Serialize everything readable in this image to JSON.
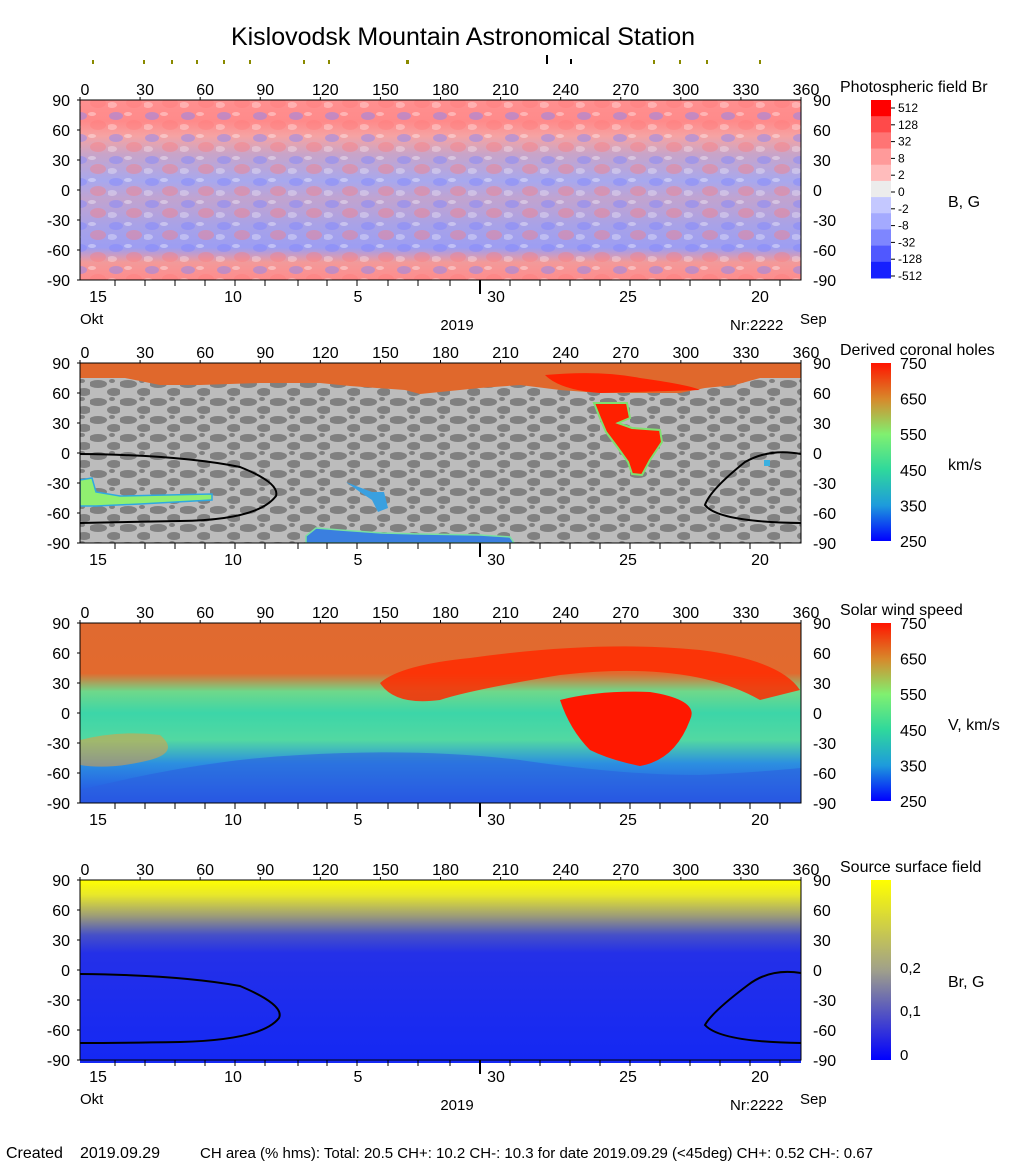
{
  "title": "Kislovodsk Mountain Astronomical Station",
  "footer": {
    "created_label": "Created",
    "created_date": "2019.09.29",
    "ch_area_text": "CH area (% hms): Total: 20.5 CH+: 10.2   CH-: 10.3 for date 2019.09.29 (<45deg) CH+: 0.52    CH-: 0.67"
  },
  "chart_data": [
    {
      "type": "heatmap",
      "title": "Photospheric field Br",
      "colorbar_label": "B, G",
      "colorbar_ticks": [
        "512",
        "128",
        "32",
        "8",
        "2",
        "0",
        "-2",
        "-8",
        "-32",
        "-128",
        "-512"
      ],
      "colorbar_colors": [
        "#ff0000",
        "#ff4a4a",
        "#ff7474",
        "#ff9a9a",
        "#ffbcbc",
        "#ececec",
        "#c4c8ff",
        "#a4aaff",
        "#7e86ff",
        "#5058ff",
        "#1620ff"
      ],
      "x_ticks": [
        "0",
        "30",
        "60",
        "90",
        "120",
        "150",
        "180",
        "210",
        "240",
        "270",
        "300",
        "330",
        "360"
      ],
      "y_ticks": [
        "90",
        "60",
        "30",
        "0",
        "-30",
        "-60",
        "-90"
      ],
      "xlim": [
        0,
        360
      ],
      "ylim": [
        -90,
        90
      ],
      "date_ticks": [
        "15",
        "10",
        "5",
        "30",
        "25",
        "20"
      ],
      "month_left": "Okt",
      "year": "2019",
      "rotation": "Nr:2222",
      "month_right": "Sep"
    },
    {
      "type": "heatmap",
      "title": "Derived coronal holes",
      "colorbar_label": "km/s",
      "colorbar_ticks": [
        "750",
        "650",
        "550",
        "450",
        "350",
        "250"
      ],
      "x_ticks": [
        "0",
        "30",
        "60",
        "90",
        "120",
        "150",
        "180",
        "210",
        "240",
        "270",
        "300",
        "330",
        "360"
      ],
      "y_ticks": [
        "90",
        "60",
        "30",
        "0",
        "-30",
        "-60",
        "-90"
      ],
      "xlim": [
        0,
        360
      ],
      "ylim": [
        -90,
        90
      ],
      "date_ticks": [
        "15",
        "10",
        "5",
        "30",
        "25",
        "20"
      ]
    },
    {
      "type": "heatmap",
      "title": "Solar wind speed",
      "colorbar_label": "V, km/s",
      "colorbar_ticks": [
        "750",
        "650",
        "550",
        "450",
        "350",
        "250"
      ],
      "x_ticks": [
        "0",
        "30",
        "60",
        "90",
        "120",
        "150",
        "180",
        "210",
        "240",
        "270",
        "300",
        "330",
        "360"
      ],
      "y_ticks": [
        "90",
        "60",
        "30",
        "0",
        "-30",
        "-60",
        "-90"
      ],
      "xlim": [
        0,
        360
      ],
      "ylim": [
        -90,
        90
      ],
      "date_ticks": [
        "15",
        "10",
        "5",
        "30",
        "25",
        "20"
      ]
    },
    {
      "type": "heatmap",
      "title": "Source surface field",
      "colorbar_label": "Br, G",
      "colorbar_ticks": [
        "0,2",
        "0,1",
        "0"
      ],
      "x_ticks": [
        "0",
        "30",
        "60",
        "90",
        "120",
        "150",
        "180",
        "210",
        "240",
        "270",
        "300",
        "330",
        "360"
      ],
      "y_ticks": [
        "90",
        "60",
        "30",
        "0",
        "-30",
        "-60",
        "-90"
      ],
      "xlim": [
        0,
        360
      ],
      "ylim": [
        -90,
        90
      ],
      "date_ticks": [
        "15",
        "10",
        "5",
        "30",
        "25",
        "20"
      ],
      "month_left": "Okt",
      "year": "2019",
      "rotation": "Nr:2222",
      "month_right": "Sep"
    }
  ]
}
